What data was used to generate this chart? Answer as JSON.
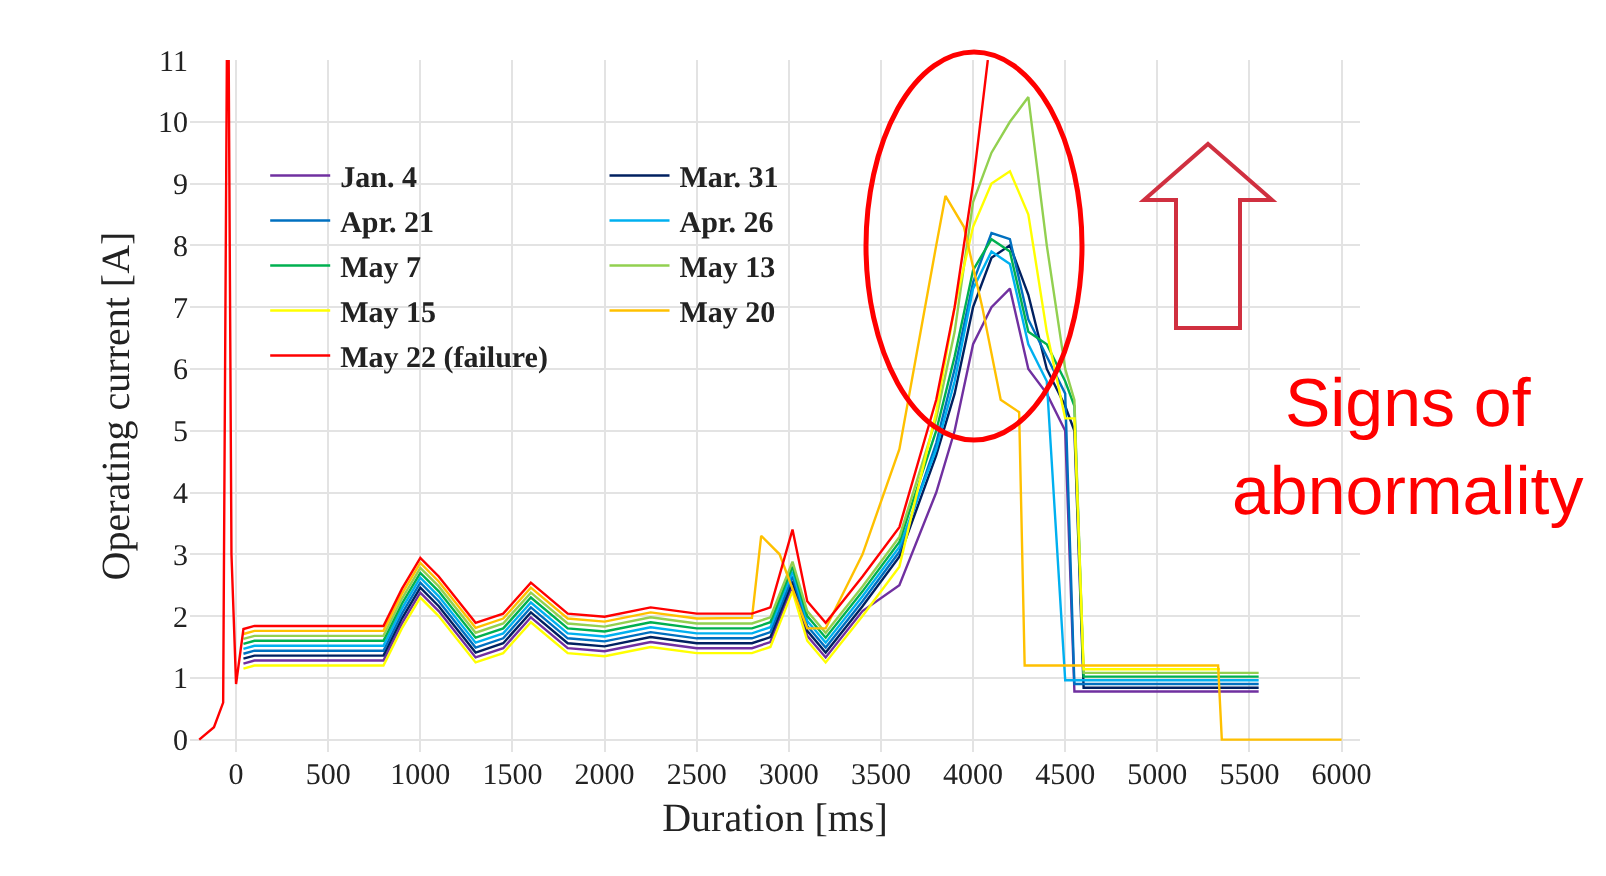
{
  "chart_data": {
    "type": "line",
    "xlabel": "Duration [ms]",
    "ylabel": "Operating current [A]",
    "x": [
      40,
      100,
      400,
      800,
      900,
      1000,
      1100,
      1300,
      1450,
      1600,
      1800,
      2000,
      2250,
      2500,
      2800,
      2900,
      3020,
      3100,
      3200,
      3400,
      3600,
      3800,
      3900,
      4000,
      4100,
      4200,
      4300,
      4400,
      4500,
      4550,
      4600,
      5000,
      5340,
      5550
    ],
    "series": [
      {
        "name": "Jan. 4",
        "color": "#7030a0",
        "values": [
          1.23,
          1.28,
          1.28,
          1.28,
          1.88,
          2.38,
          2.08,
          1.33,
          1.48,
          1.98,
          1.48,
          1.43,
          1.58,
          1.48,
          1.48,
          1.58,
          2.48,
          1.68,
          1.33,
          2.08,
          2.5,
          4.0,
          5.0,
          6.4,
          7.0,
          7.3,
          6.0,
          5.6,
          5.0,
          0.78,
          0.78,
          0.78,
          0.78,
          0.78
        ]
      },
      {
        "name": "Mar. 31",
        "color": "#002060",
        "values": [
          1.31,
          1.36,
          1.36,
          1.36,
          1.96,
          2.46,
          2.16,
          1.41,
          1.56,
          2.06,
          1.56,
          1.51,
          1.66,
          1.56,
          1.56,
          1.66,
          2.56,
          1.76,
          1.41,
          2.16,
          2.96,
          4.6,
          5.6,
          7.0,
          7.8,
          8.0,
          7.2,
          6.0,
          5.4,
          5.0,
          0.84,
          0.84,
          0.84,
          0.84
        ]
      },
      {
        "name": "Apr. 21",
        "color": "#0070c0",
        "values": [
          1.39,
          1.44,
          1.44,
          1.44,
          2.04,
          2.54,
          2.24,
          1.49,
          1.64,
          2.14,
          1.64,
          1.59,
          1.74,
          1.64,
          1.64,
          1.74,
          2.64,
          1.84,
          1.49,
          2.24,
          3.04,
          4.8,
          6.0,
          7.4,
          8.2,
          8.1,
          6.8,
          6.2,
          5.6,
          0.9,
          0.9,
          0.9,
          0.9,
          0.9
        ]
      },
      {
        "name": "Apr. 26",
        "color": "#00b0f0",
        "values": [
          1.47,
          1.52,
          1.52,
          1.52,
          2.12,
          2.62,
          2.32,
          1.57,
          1.72,
          2.22,
          1.72,
          1.67,
          1.82,
          1.72,
          1.72,
          1.82,
          2.72,
          1.92,
          1.57,
          2.32,
          3.12,
          4.7,
          5.8,
          7.3,
          7.9,
          7.7,
          6.4,
          5.8,
          0.96,
          0.96,
          0.96,
          0.96,
          0.96,
          0.96
        ]
      },
      {
        "name": "May 7",
        "color": "#00b050",
        "values": [
          1.55,
          1.6,
          1.6,
          1.6,
          2.2,
          2.7,
          2.4,
          1.65,
          1.8,
          2.3,
          1.8,
          1.75,
          1.9,
          1.8,
          1.8,
          1.9,
          2.8,
          2.0,
          1.65,
          2.4,
          3.2,
          5.0,
          6.2,
          7.6,
          8.1,
          7.9,
          6.6,
          6.4,
          5.8,
          5.4,
          1.02,
          1.02,
          1.02,
          1.02
        ]
      },
      {
        "name": "May 13",
        "color": "#92d050",
        "values": [
          1.63,
          1.68,
          1.68,
          1.68,
          2.28,
          2.78,
          2.48,
          1.73,
          1.88,
          2.38,
          1.88,
          1.83,
          1.98,
          1.88,
          1.88,
          1.98,
          2.88,
          2.08,
          1.73,
          2.48,
          3.28,
          5.2,
          6.6,
          8.7,
          9.5,
          10.0,
          10.4,
          8.0,
          6.0,
          5.5,
          1.08,
          1.08,
          1.08,
          1.08
        ]
      },
      {
        "name": "May 15",
        "color": "#ffff00",
        "values": [
          1.15,
          1.2,
          1.2,
          1.2,
          1.8,
          2.3,
          2.0,
          1.25,
          1.4,
          1.9,
          1.4,
          1.35,
          1.5,
          1.4,
          1.4,
          1.5,
          2.4,
          1.6,
          1.25,
          2.0,
          2.8,
          5.3,
          7.0,
          8.3,
          9.0,
          9.2,
          8.5,
          6.6,
          5.2,
          5.2,
          1.14,
          1.14,
          1.14,
          null
        ]
      },
      {
        "name": "May 20",
        "color": "#ffc000",
        "x": [
          40,
          100,
          400,
          800,
          900,
          1000,
          1100,
          1300,
          1450,
          1600,
          1800,
          2000,
          2250,
          2500,
          2800,
          2850,
          2950,
          3100,
          3200,
          3400,
          3600,
          3800,
          3850,
          3950,
          4050,
          4150,
          4250,
          4280,
          4320,
          5000,
          5330,
          5350,
          6000
        ],
        "values": [
          1.71,
          1.76,
          1.76,
          1.76,
          2.36,
          2.86,
          2.56,
          1.81,
          1.96,
          2.46,
          1.96,
          1.91,
          2.06,
          1.96,
          1.97,
          3.3,
          3.0,
          1.8,
          1.8,
          3.0,
          4.7,
          8.0,
          8.8,
          8.3,
          7.0,
          5.5,
          5.3,
          1.2,
          1.2,
          1.2,
          1.2,
          0,
          0
        ]
      },
      {
        "name": "May 22 (failure)",
        "color": "#ff0000",
        "x": [
          -200,
          -120,
          -70,
          -50,
          -40,
          -25,
          0,
          40,
          100,
          400,
          800,
          900,
          1000,
          1100,
          1300,
          1450,
          1600,
          1800,
          2000,
          2250,
          2500,
          2800,
          2900,
          3020,
          3100,
          3200,
          3400,
          3600,
          3800,
          3900,
          4000,
          4080
        ],
        "values": [
          0,
          0.2,
          0.6,
          11,
          11,
          3,
          0.9,
          1.79,
          1.84,
          1.84,
          1.84,
          2.44,
          2.94,
          2.64,
          1.89,
          2.04,
          2.54,
          2.04,
          1.99,
          2.14,
          2.04,
          2.04,
          2.14,
          3.4,
          2.24,
          1.89,
          2.64,
          3.44,
          5.5,
          7.0,
          9.0,
          11
        ]
      }
    ],
    "xlim": [
      -250,
      6100
    ],
    "xticks": [
      0,
      500,
      1000,
      1500,
      2000,
      2500,
      3000,
      3500,
      4000,
      4500,
      5000,
      5500,
      6000
    ],
    "ylim": [
      -0.2,
      11
    ],
    "yticks": [
      0,
      1,
      2,
      3,
      4,
      5,
      6,
      7,
      8,
      9,
      10,
      11
    ],
    "grid": true,
    "legend": "top left",
    "marker": "none",
    "line_style": "solid",
    "annotations": [
      "Signs of abnormality"
    ]
  }
}
